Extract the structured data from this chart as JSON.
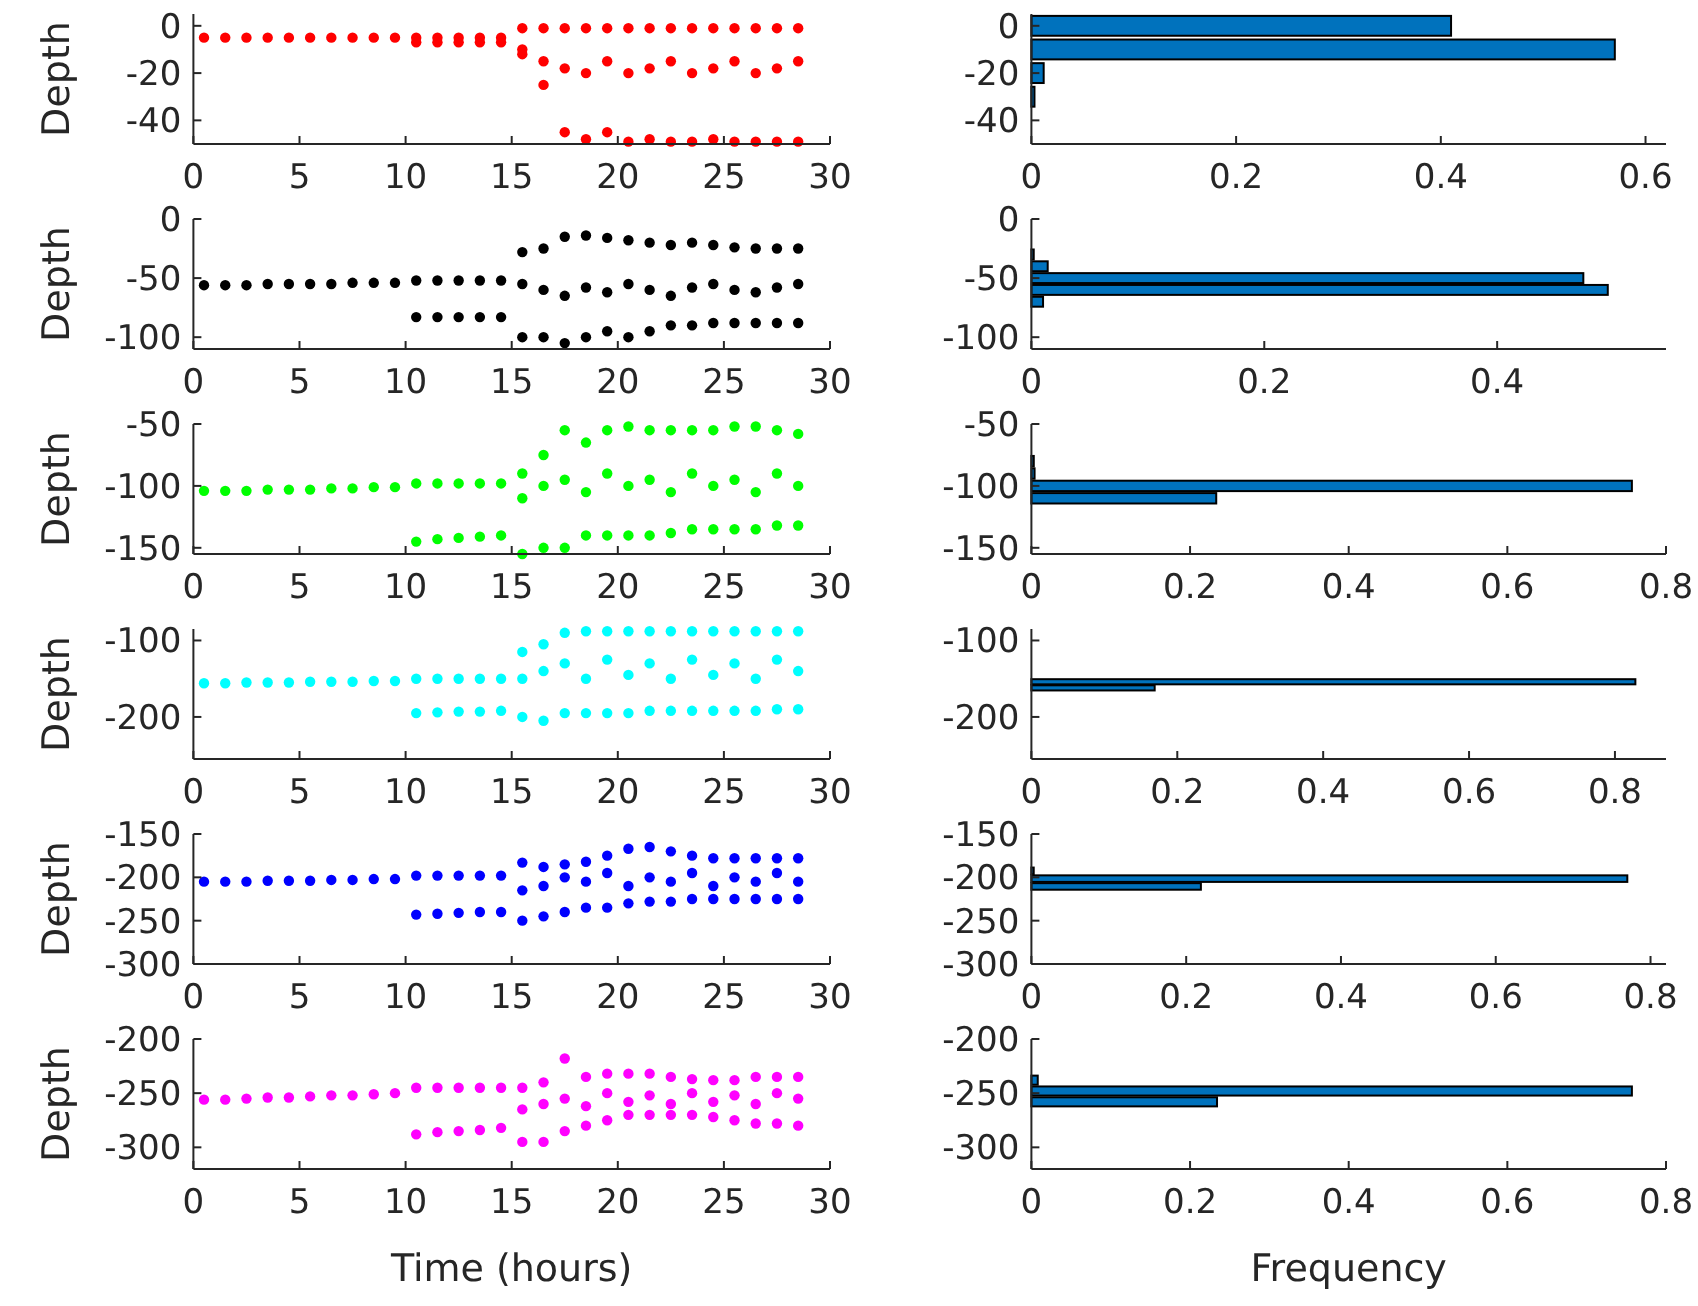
{
  "chart_data": [
    {
      "type": "scatter",
      "ylabel": "Depth",
      "marker": "circle",
      "xlim": [
        0,
        30
      ],
      "xticks": [
        0,
        5,
        10,
        15,
        20,
        25,
        30
      ],
      "ylim": [
        -50,
        5
      ],
      "yticks": [
        -40,
        -20,
        0
      ],
      "series": [
        {
          "color": "#ff0000",
          "x": [
            0.5,
            1.5,
            2.5,
            3.5,
            4.5,
            5.5,
            6.5,
            7.5,
            8.5,
            9.5,
            10.5,
            11.5,
            12.5,
            13.5,
            14.5,
            10.5,
            11.5,
            12.5,
            13.5,
            14.5,
            15.5,
            16.5,
            17.5,
            18.5,
            19.5,
            20.5,
            21.5,
            22.5,
            23.5,
            24.5,
            25.5,
            26.5,
            27.5,
            28.5,
            15.5,
            16.5,
            17.5,
            18.5,
            19.5,
            20.5,
            21.5,
            22.5,
            23.5,
            24.5,
            25.5,
            26.5,
            27.5,
            28.5,
            15.5,
            16.5,
            17.5,
            18.5,
            19.5,
            20.5,
            21.5,
            22.5,
            23.5,
            24.5,
            25.5,
            26.5,
            27.5,
            28.5
          ],
          "values": [
            -5,
            -5,
            -5,
            -5,
            -5,
            -5,
            -5,
            -5,
            -5,
            -5,
            -5,
            -5,
            -5,
            -5,
            -5,
            -7,
            -7,
            -7,
            -7,
            -7,
            -1,
            -1,
            -1,
            -1,
            -1,
            -1,
            -1,
            -1,
            -1,
            -1,
            -1,
            -1,
            -1,
            -1,
            -12,
            -15,
            -18,
            -20,
            -15,
            -20,
            -18,
            -15,
            -20,
            -18,
            -15,
            -20,
            -18,
            -15,
            -10,
            -25,
            -45,
            -48,
            -45,
            -49,
            -48,
            -49,
            -49,
            -48,
            -49,
            -49,
            -49,
            -49
          ]
        }
      ]
    },
    {
      "type": "histogram",
      "orientation": "horizontal",
      "color": "#0072bd",
      "bins": [
        -35,
        -25,
        -15,
        -5,
        5
      ],
      "values": [
        0.003,
        0.012,
        0.57,
        0.41
      ],
      "xlim": [
        0,
        0.62
      ],
      "xticks": [
        0,
        0.2,
        0.4,
        0.6
      ],
      "ylim": [
        -50,
        5
      ],
      "yticks": [
        -40,
        -20,
        0
      ]
    },
    {
      "type": "scatter",
      "ylabel": "Depth",
      "marker": "circle",
      "xlim": [
        0,
        30
      ],
      "xticks": [
        0,
        5,
        10,
        15,
        20,
        25,
        30
      ],
      "ylim": [
        -110,
        0
      ],
      "yticks": [
        -100,
        -50,
        0
      ],
      "series": [
        {
          "color": "#000000",
          "x": [
            0.5,
            1.5,
            2.5,
            3.5,
            4.5,
            5.5,
            6.5,
            7.5,
            8.5,
            9.5,
            10.5,
            11.5,
            12.5,
            13.5,
            14.5,
            10.5,
            11.5,
            12.5,
            13.5,
            14.5,
            15.5,
            16.5,
            17.5,
            18.5,
            19.5,
            20.5,
            21.5,
            22.5,
            23.5,
            24.5,
            25.5,
            26.5,
            27.5,
            28.5,
            15.5,
            16.5,
            17.5,
            18.5,
            19.5,
            20.5,
            21.5,
            22.5,
            23.5,
            24.5,
            25.5,
            26.5,
            27.5,
            28.5,
            15.5,
            16.5,
            17.5,
            18.5,
            19.5,
            20.5,
            21.5,
            22.5,
            23.5,
            24.5,
            25.5,
            26.5,
            27.5,
            28.5
          ],
          "values": [
            -56,
            -56,
            -56,
            -55,
            -55,
            -55,
            -55,
            -54,
            -54,
            -54,
            -52,
            -52,
            -52,
            -52,
            -52,
            -83,
            -83,
            -83,
            -83,
            -83,
            -28,
            -25,
            -15,
            -14,
            -16,
            -18,
            -20,
            -22,
            -20,
            -22,
            -24,
            -25,
            -25,
            -25,
            -55,
            -60,
            -65,
            -58,
            -62,
            -55,
            -60,
            -65,
            -58,
            -55,
            -60,
            -62,
            -58,
            -55,
            -100,
            -100,
            -105,
            -100,
            -95,
            -100,
            -95,
            -90,
            -90,
            -88,
            -88,
            -88,
            -88,
            -88
          ]
        }
      ]
    },
    {
      "type": "histogram",
      "orientation": "horizontal",
      "color": "#0072bd",
      "bins": [
        -75,
        -65,
        -55,
        -45,
        -35,
        -25
      ],
      "values": [
        0.01,
        0.495,
        0.474,
        0.014,
        0.002
      ],
      "xlim": [
        0,
        0.545
      ],
      "xticks": [
        0,
        0.2,
        0.4
      ],
      "ylim": [
        -110,
        0
      ],
      "yticks": [
        -100,
        -50,
        0
      ]
    },
    {
      "type": "scatter",
      "ylabel": "Depth",
      "marker": "circle",
      "xlim": [
        0,
        30
      ],
      "xticks": [
        0,
        5,
        10,
        15,
        20,
        25,
        30
      ],
      "ylim": [
        -155,
        -50
      ],
      "yticks": [
        -150,
        -100,
        -50
      ],
      "series": [
        {
          "color": "#00ff00",
          "x": [
            0.5,
            1.5,
            2.5,
            3.5,
            4.5,
            5.5,
            6.5,
            7.5,
            8.5,
            9.5,
            10.5,
            11.5,
            12.5,
            13.5,
            14.5,
            10.5,
            11.5,
            12.5,
            13.5,
            14.5,
            15.5,
            16.5,
            17.5,
            18.5,
            19.5,
            20.5,
            21.5,
            22.5,
            23.5,
            24.5,
            25.5,
            26.5,
            27.5,
            28.5,
            15.5,
            16.5,
            17.5,
            18.5,
            19.5,
            20.5,
            21.5,
            22.5,
            23.5,
            24.5,
            25.5,
            26.5,
            27.5,
            28.5,
            15.5,
            16.5,
            17.5,
            18.5,
            19.5,
            20.5,
            21.5,
            22.5,
            23.5,
            24.5,
            25.5,
            26.5,
            27.5,
            28.5
          ],
          "values": [
            -104,
            -104,
            -104,
            -103,
            -103,
            -103,
            -102,
            -102,
            -101,
            -101,
            -98,
            -98,
            -98,
            -98,
            -98,
            -145,
            -143,
            -142,
            -141,
            -140,
            -90,
            -75,
            -55,
            -65,
            -55,
            -52,
            -55,
            -55,
            -55,
            -55,
            -52,
            -52,
            -55,
            -58,
            -110,
            -100,
            -95,
            -105,
            -90,
            -100,
            -95,
            -105,
            -90,
            -100,
            -95,
            -105,
            -90,
            -100,
            -155,
            -150,
            -150,
            -140,
            -140,
            -140,
            -140,
            -138,
            -135,
            -135,
            -135,
            -135,
            -132,
            -132
          ]
        }
      ]
    },
    {
      "type": "histogram",
      "orientation": "horizontal",
      "color": "#0072bd",
      "bins": [
        -115,
        -105,
        -95,
        -85,
        -75
      ],
      "values": [
        0.233,
        0.757,
        0.004,
        0.003
      ],
      "xlim": [
        0,
        0.8
      ],
      "xticks": [
        0,
        0.2,
        0.4,
        0.6,
        0.8
      ],
      "ylim": [
        -155,
        -50
      ],
      "yticks": [
        -150,
        -100,
        -50
      ]
    },
    {
      "type": "scatter",
      "ylabel": "Depth",
      "marker": "circle",
      "xlim": [
        0,
        30
      ],
      "xticks": [
        0,
        5,
        10,
        15,
        20,
        25,
        30
      ],
      "ylim": [
        -255,
        -85
      ],
      "yticks": [
        -200,
        -100
      ],
      "series": [
        {
          "color": "#00ffff",
          "x": [
            0.5,
            1.5,
            2.5,
            3.5,
            4.5,
            5.5,
            6.5,
            7.5,
            8.5,
            9.5,
            10.5,
            11.5,
            12.5,
            13.5,
            14.5,
            10.5,
            11.5,
            12.5,
            13.5,
            14.5,
            15.5,
            16.5,
            17.5,
            18.5,
            19.5,
            20.5,
            21.5,
            22.5,
            23.5,
            24.5,
            25.5,
            26.5,
            27.5,
            28.5,
            15.5,
            16.5,
            17.5,
            18.5,
            19.5,
            20.5,
            21.5,
            22.5,
            23.5,
            24.5,
            25.5,
            26.5,
            27.5,
            28.5,
            15.5,
            16.5,
            17.5,
            18.5,
            19.5,
            20.5,
            21.5,
            22.5,
            23.5,
            24.5,
            25.5,
            26.5,
            27.5,
            28.5
          ],
          "values": [
            -156,
            -156,
            -155,
            -155,
            -155,
            -154,
            -154,
            -154,
            -153,
            -153,
            -150,
            -150,
            -150,
            -150,
            -150,
            -195,
            -194,
            -193,
            -193,
            -192,
            -115,
            -105,
            -90,
            -88,
            -88,
            -88,
            -88,
            -88,
            -88,
            -88,
            -88,
            -88,
            -88,
            -88,
            -150,
            -140,
            -130,
            -150,
            -125,
            -145,
            -130,
            -150,
            -125,
            -145,
            -130,
            -150,
            -125,
            -140,
            -200,
            -205,
            -195,
            -195,
            -195,
            -195,
            -192,
            -192,
            -192,
            -192,
            -192,
            -192,
            -190,
            -190
          ]
        }
      ]
    },
    {
      "type": "histogram",
      "orientation": "horizontal",
      "color": "#0072bd",
      "bins": [
        -166,
        -158,
        -150
      ],
      "values": [
        0.169,
        0.828
      ],
      "xlim": [
        0,
        0.87
      ],
      "xticks": [
        0,
        0.2,
        0.4,
        0.6,
        0.8
      ],
      "ylim": [
        -255,
        -85
      ],
      "yticks": [
        -200,
        -100
      ]
    },
    {
      "type": "scatter",
      "ylabel": "Depth",
      "marker": "circle",
      "xlim": [
        0,
        30
      ],
      "xticks": [
        0,
        5,
        10,
        15,
        20,
        25,
        30
      ],
      "ylim": [
        -300,
        -150
      ],
      "yticks": [
        -300,
        -250,
        -200,
        -150
      ],
      "series": [
        {
          "color": "#0000ff",
          "x": [
            0.5,
            1.5,
            2.5,
            3.5,
            4.5,
            5.5,
            6.5,
            7.5,
            8.5,
            9.5,
            10.5,
            11.5,
            12.5,
            13.5,
            14.5,
            10.5,
            11.5,
            12.5,
            13.5,
            14.5,
            15.5,
            16.5,
            17.5,
            18.5,
            19.5,
            20.5,
            21.5,
            22.5,
            23.5,
            24.5,
            25.5,
            26.5,
            27.5,
            28.5,
            15.5,
            16.5,
            17.5,
            18.5,
            19.5,
            20.5,
            21.5,
            22.5,
            23.5,
            24.5,
            25.5,
            26.5,
            27.5,
            28.5,
            15.5,
            16.5,
            17.5,
            18.5,
            19.5,
            20.5,
            21.5,
            22.5,
            23.5,
            24.5,
            25.5,
            26.5,
            27.5,
            28.5
          ],
          "values": [
            -205,
            -205,
            -205,
            -204,
            -204,
            -204,
            -203,
            -203,
            -202,
            -202,
            -198,
            -198,
            -198,
            -198,
            -198,
            -243,
            -242,
            -241,
            -240,
            -240,
            -183,
            -188,
            -185,
            -182,
            -175,
            -167,
            -165,
            -170,
            -175,
            -178,
            -178,
            -178,
            -178,
            -178,
            -215,
            -210,
            -200,
            -205,
            -195,
            -210,
            -200,
            -205,
            -195,
            -210,
            -200,
            -205,
            -195,
            -205,
            -250,
            -245,
            -240,
            -235,
            -235,
            -230,
            -228,
            -228,
            -225,
            -225,
            -225,
            -225,
            -225,
            -225
          ]
        }
      ]
    },
    {
      "type": "histogram",
      "orientation": "horizontal",
      "color": "#0072bd",
      "bins": [
        -215,
        -206,
        -197,
        -188
      ],
      "values": [
        0.219,
        0.77,
        0.003
      ],
      "xlim": [
        0,
        0.82
      ],
      "xticks": [
        0,
        0.2,
        0.4,
        0.6,
        0.8
      ],
      "ylim": [
        -300,
        -150
      ],
      "yticks": [
        -300,
        -250,
        -200,
        -150
      ]
    },
    {
      "type": "scatter",
      "ylabel": "Depth",
      "xlabel": "Time (hours)",
      "marker": "circle",
      "xlim": [
        0,
        30
      ],
      "xticks": [
        0,
        5,
        10,
        15,
        20,
        25,
        30
      ],
      "ylim": [
        -320,
        -200
      ],
      "yticks": [
        -300,
        -250,
        -200
      ],
      "series": [
        {
          "color": "#ff00ff",
          "x": [
            0.5,
            1.5,
            2.5,
            3.5,
            4.5,
            5.5,
            6.5,
            7.5,
            8.5,
            9.5,
            10.5,
            11.5,
            12.5,
            13.5,
            14.5,
            10.5,
            11.5,
            12.5,
            13.5,
            14.5,
            15.5,
            16.5,
            17.5,
            18.5,
            19.5,
            20.5,
            21.5,
            22.5,
            23.5,
            24.5,
            25.5,
            26.5,
            27.5,
            28.5,
            15.5,
            16.5,
            17.5,
            18.5,
            19.5,
            20.5,
            21.5,
            22.5,
            23.5,
            24.5,
            25.5,
            26.5,
            27.5,
            28.5,
            15.5,
            16.5,
            17.5,
            18.5,
            19.5,
            20.5,
            21.5,
            22.5,
            23.5,
            24.5,
            25.5,
            26.5,
            27.5,
            28.5
          ],
          "values": [
            -256,
            -256,
            -255,
            -254,
            -254,
            -253,
            -252,
            -252,
            -251,
            -250,
            -245,
            -245,
            -245,
            -245,
            -245,
            -288,
            -286,
            -285,
            -284,
            -282,
            -245,
            -240,
            -218,
            -235,
            -232,
            -232,
            -232,
            -235,
            -237,
            -238,
            -238,
            -235,
            -235,
            -235,
            -265,
            -260,
            -255,
            -262,
            -250,
            -258,
            -252,
            -260,
            -250,
            -258,
            -252,
            -260,
            -250,
            -255,
            -295,
            -295,
            -285,
            -280,
            -275,
            -270,
            -270,
            -270,
            -270,
            -272,
            -275,
            -278,
            -278,
            -280
          ]
        }
      ]
    },
    {
      "type": "histogram",
      "orientation": "horizontal",
      "xlabel": "Frequency",
      "color": "#0072bd",
      "bins": [
        -263,
        -253,
        -243,
        -233
      ],
      "values": [
        0.234,
        0.757,
        0.008
      ],
      "xlim": [
        0,
        0.8
      ],
      "xticks": [
        0,
        0.2,
        0.4,
        0.6,
        0.8
      ],
      "ylim": [
        -320,
        -200
      ],
      "yticks": [
        -300,
        -250,
        -200
      ]
    }
  ]
}
